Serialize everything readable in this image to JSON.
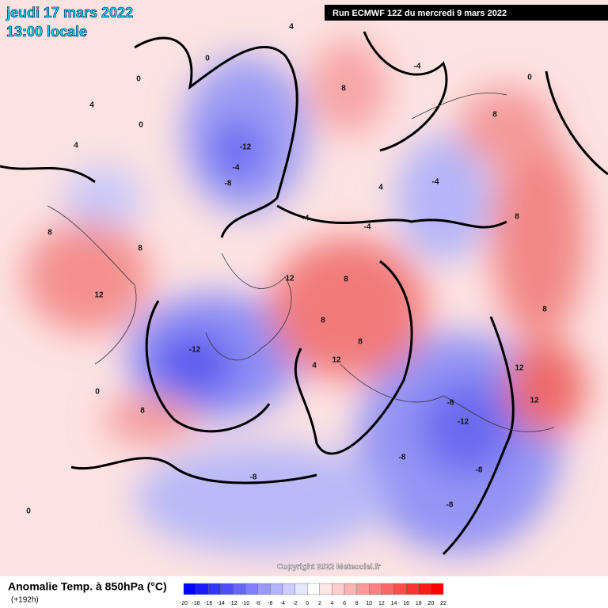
{
  "header": {
    "date": "jeudi 17 mars 2022",
    "time": "13:00 locale",
    "run": "Run ECMWF 12Z du mercredi 9 mars 2022"
  },
  "footer": {
    "title": "Anomalie Temp. à 850hPa (°C)",
    "lead": "(+192h)",
    "copyright": "Copyright 2022 Meteociel.fr"
  },
  "legend": {
    "ticks": [
      -20,
      -18,
      -16,
      -14,
      -12,
      -10,
      -8,
      -6,
      -4,
      -2,
      0,
      2,
      4,
      6,
      8,
      10,
      12,
      14,
      16,
      18,
      20,
      22
    ],
    "colors": [
      "#0000ff",
      "#1a1aff",
      "#3333ff",
      "#4d4dff",
      "#6666ff",
      "#8080ff",
      "#9999ff",
      "#b3b3ff",
      "#ccccff",
      "#e6e6ff",
      "#ffffff",
      "#ffe6e6",
      "#ffcccc",
      "#ffb3b3",
      "#ff9999",
      "#ff8080",
      "#ff6666",
      "#ff4d4d",
      "#ff3333",
      "#ff1a1a",
      "#ff0000"
    ]
  },
  "map": {
    "contour_labels": [
      "-12",
      "-8",
      "-4",
      "0",
      "4",
      "-4",
      "0",
      "8",
      "4",
      "-4",
      "8",
      "12",
      "8",
      "4",
      "12",
      "8",
      "8",
      "12",
      "8",
      "-12",
      "-8",
      "0",
      "8",
      "-8",
      "-12",
      "-8",
      "-8",
      "-4",
      "-8",
      "0",
      "8",
      "12",
      "8",
      "8",
      "12",
      "-4",
      "4",
      "0",
      "0",
      "4"
    ]
  }
}
